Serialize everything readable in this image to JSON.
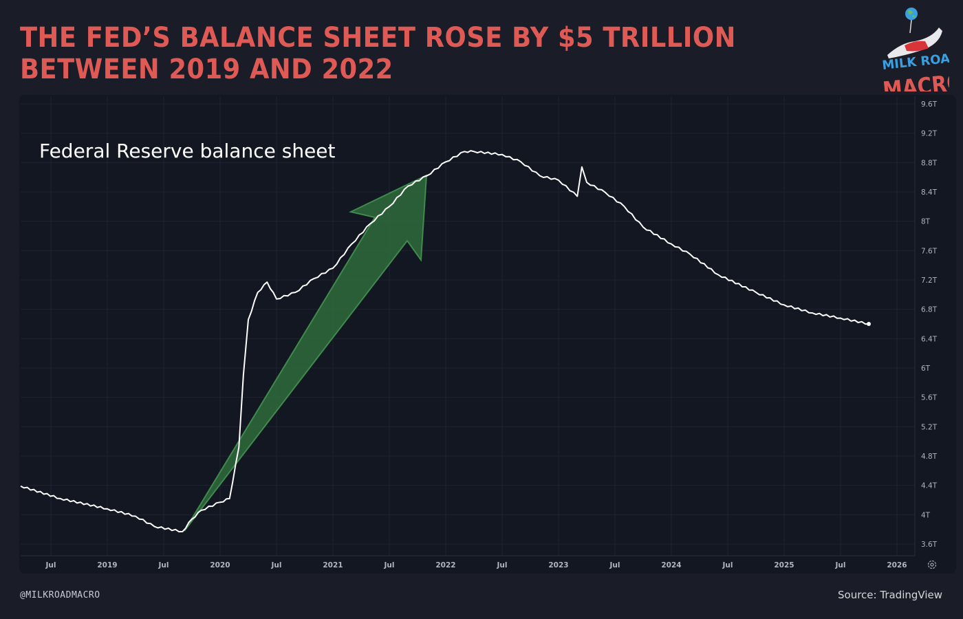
{
  "title_lines": [
    "THE FED’S BALANCE SHEET ROSE BY $5 TRILLION",
    "BETWEEN 2019 AND 2022"
  ],
  "logo": {
    "line1": "MILK ROAD",
    "line2": "MACRO"
  },
  "handle": "@MILKROADMACRO",
  "source": "Source: TradingView",
  "settings_icon": "gear-icon",
  "colors": {
    "title": "#e05a55",
    "line": "#ffffff",
    "arrow": "#2e6b3a",
    "background": "#131722"
  },
  "chart_data": {
    "type": "line",
    "title": "Federal Reserve balance sheet",
    "xlabel": "",
    "ylabel": "",
    "x_ticks": [
      "Jul",
      "2019",
      "Jul",
      "2020",
      "Jul",
      "2021",
      "Jul",
      "2022",
      "Jul",
      "2023",
      "Jul",
      "2024",
      "Jul",
      "2025",
      "Jul",
      "2026"
    ],
    "y_ticks": [
      "9.6T",
      "9.2T",
      "8.8T",
      "8.4T",
      "8T",
      "7.6T",
      "7.2T",
      "6.8T",
      "6.4T",
      "6T",
      "5.6T",
      "5.2T",
      "4.8T",
      "4.4T",
      "4T",
      "3.6T"
    ],
    "ylim": [
      3.6,
      9.6
    ],
    "y_unit": "T",
    "grid": true,
    "annotation": "green arrow rising from 2019 low to 2022 peak",
    "series": [
      {
        "x": [
          "2018-03",
          "2018-08",
          "2019-01",
          "2019-04",
          "2019-06",
          "2019-09",
          "2019-10",
          "2019-11",
          "2020-01",
          "2020-02",
          "2020-03",
          "2020-03",
          "2020-04",
          "2020-05",
          "2020-06",
          "2020-07",
          "2020-09",
          "2020-11",
          "2021-01",
          "2021-03",
          "2021-05",
          "2021-07",
          "2021-09",
          "2021-11",
          "2022-01",
          "2022-03",
          "2022-04",
          "2022-07",
          "2022-09",
          "2022-11",
          "2023-01",
          "2023-03",
          "2023-03",
          "2023-04",
          "2023-06",
          "2023-08",
          "2023-10",
          "2024-01",
          "2024-03",
          "2024-06",
          "2024-10",
          "2025-01",
          "2025-04",
          "2025-07",
          "2025-10"
        ],
        "values": [
          4.39,
          4.22,
          4.08,
          3.98,
          3.84,
          3.77,
          3.94,
          4.06,
          4.17,
          4.22,
          4.92,
          5.91,
          6.66,
          7.03,
          7.17,
          6.94,
          7.03,
          7.22,
          7.36,
          7.69,
          7.97,
          8.2,
          8.48,
          8.62,
          8.81,
          8.95,
          8.95,
          8.91,
          8.81,
          8.62,
          8.56,
          8.34,
          8.74,
          8.53,
          8.39,
          8.2,
          7.92,
          7.69,
          7.55,
          7.27,
          7.03,
          6.86,
          6.75,
          6.68,
          6.6
        ]
      }
    ]
  }
}
